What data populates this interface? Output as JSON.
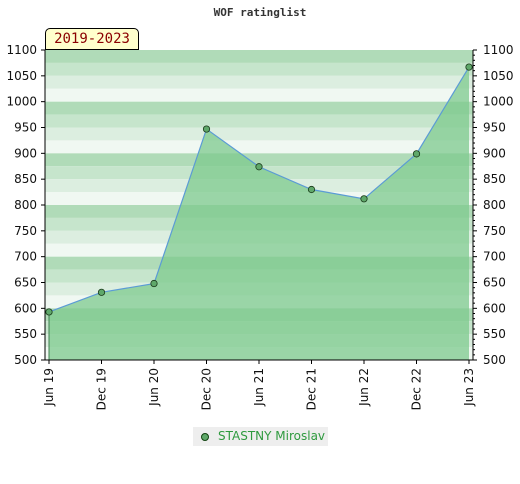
{
  "title": "WOF ratinglist",
  "period_label": "2019-2023",
  "chart_data": {
    "type": "area",
    "title": "WOF ratinglist",
    "x": [
      "Jun 19",
      "Dec 19",
      "Jun 20",
      "Dec 20",
      "Jun 21",
      "Dec 21",
      "Jun 22",
      "Dec 22",
      "Jun 23"
    ],
    "series": [
      {
        "name": "STASTNY Miroslav",
        "values": [
          593,
          631,
          648,
          947,
          874,
          830,
          812,
          899,
          1067
        ]
      }
    ],
    "ylim": [
      500,
      1100
    ],
    "yticks": [
      500,
      550,
      600,
      650,
      700,
      750,
      800,
      850,
      900,
      950,
      1000,
      1050,
      1100
    ],
    "y_axis_sides": "left and right",
    "legend_position": "bottom",
    "colors": {
      "line": "#5b9bd5",
      "fill": "#7ec98e",
      "marker": "#5fa86a",
      "legend_text": "#2e9a3e",
      "badge_bg": "#ffffcc",
      "badge_text": "#8b0000"
    }
  }
}
